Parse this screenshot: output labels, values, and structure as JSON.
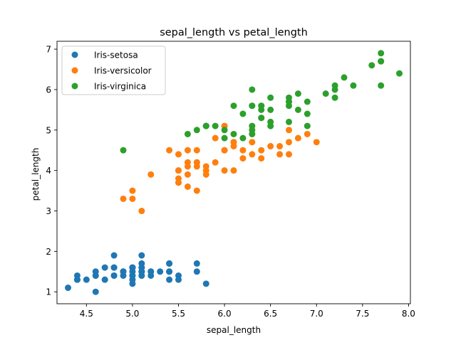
{
  "chart_data": {
    "type": "scatter",
    "title": "sepal_length vs petal_length",
    "xlabel": "sepal_length",
    "ylabel": "petal_length",
    "xlim": [
      4.18,
      8.02
    ],
    "ylim": [
      0.705,
      7.195
    ],
    "xticks": [
      4.5,
      5.0,
      5.5,
      6.0,
      6.5,
      7.0,
      7.5,
      8.0
    ],
    "yticks": [
      1,
      2,
      3,
      4,
      5,
      6,
      7
    ],
    "grid": false,
    "legend_position": "top-left",
    "series": [
      {
        "name": "Iris-setosa",
        "color": "#1f77b4",
        "points": [
          [
            5.1,
            1.4
          ],
          [
            4.9,
            1.4
          ],
          [
            4.7,
            1.3
          ],
          [
            4.6,
            1.5
          ],
          [
            5.0,
            1.4
          ],
          [
            5.4,
            1.7
          ],
          [
            4.6,
            1.4
          ],
          [
            5.0,
            1.5
          ],
          [
            4.4,
            1.4
          ],
          [
            4.9,
            1.5
          ],
          [
            5.4,
            1.5
          ],
          [
            4.8,
            1.6
          ],
          [
            4.8,
            1.4
          ],
          [
            4.3,
            1.1
          ],
          [
            5.8,
            1.2
          ],
          [
            5.7,
            1.5
          ],
          [
            5.4,
            1.3
          ],
          [
            5.1,
            1.4
          ],
          [
            5.7,
            1.7
          ],
          [
            5.1,
            1.5
          ],
          [
            5.4,
            1.7
          ],
          [
            5.1,
            1.5
          ],
          [
            4.6,
            1.0
          ],
          [
            5.1,
            1.7
          ],
          [
            4.8,
            1.9
          ],
          [
            5.0,
            1.6
          ],
          [
            5.0,
            1.6
          ],
          [
            5.2,
            1.5
          ],
          [
            5.2,
            1.4
          ],
          [
            4.7,
            1.6
          ],
          [
            4.8,
            1.6
          ],
          [
            5.4,
            1.5
          ],
          [
            5.2,
            1.5
          ],
          [
            5.5,
            1.4
          ],
          [
            4.9,
            1.5
          ],
          [
            5.0,
            1.2
          ],
          [
            5.5,
            1.3
          ],
          [
            4.9,
            1.5
          ],
          [
            4.4,
            1.3
          ],
          [
            5.1,
            1.5
          ],
          [
            5.0,
            1.3
          ],
          [
            4.5,
            1.3
          ],
          [
            4.4,
            1.3
          ],
          [
            5.0,
            1.6
          ],
          [
            5.1,
            1.9
          ],
          [
            4.8,
            1.4
          ],
          [
            5.1,
            1.6
          ],
          [
            4.6,
            1.4
          ],
          [
            5.3,
            1.5
          ],
          [
            5.0,
            1.4
          ]
        ]
      },
      {
        "name": "Iris-versicolor",
        "color": "#ff7f0e",
        "points": [
          [
            7.0,
            4.7
          ],
          [
            6.4,
            4.5
          ],
          [
            6.9,
            4.9
          ],
          [
            5.5,
            4.0
          ],
          [
            6.5,
            4.6
          ],
          [
            5.7,
            4.5
          ],
          [
            6.3,
            4.7
          ],
          [
            4.9,
            3.3
          ],
          [
            6.6,
            4.6
          ],
          [
            5.2,
            3.9
          ],
          [
            5.0,
            3.5
          ],
          [
            5.9,
            4.2
          ],
          [
            6.0,
            4.0
          ],
          [
            6.1,
            4.7
          ],
          [
            5.6,
            3.6
          ],
          [
            6.7,
            4.4
          ],
          [
            5.6,
            4.5
          ],
          [
            5.8,
            4.1
          ],
          [
            6.2,
            4.5
          ],
          [
            5.6,
            3.9
          ],
          [
            5.9,
            4.8
          ],
          [
            6.1,
            4.0
          ],
          [
            6.3,
            4.9
          ],
          [
            6.1,
            4.7
          ],
          [
            6.4,
            4.3
          ],
          [
            6.6,
            4.4
          ],
          [
            6.8,
            4.8
          ],
          [
            6.7,
            5.0
          ],
          [
            6.0,
            4.5
          ],
          [
            5.7,
            3.5
          ],
          [
            5.5,
            3.8
          ],
          [
            5.5,
            3.7
          ],
          [
            5.8,
            3.9
          ],
          [
            6.0,
            5.1
          ],
          [
            5.4,
            4.5
          ],
          [
            6.0,
            4.5
          ],
          [
            6.7,
            4.7
          ],
          [
            6.3,
            4.4
          ],
          [
            5.6,
            4.1
          ],
          [
            5.5,
            4.0
          ],
          [
            5.5,
            4.4
          ],
          [
            6.1,
            4.6
          ],
          [
            5.8,
            4.0
          ],
          [
            5.0,
            3.3
          ],
          [
            5.6,
            4.2
          ],
          [
            5.7,
            4.2
          ],
          [
            5.7,
            4.2
          ],
          [
            6.2,
            4.3
          ],
          [
            5.1,
            3.0
          ],
          [
            5.7,
            4.1
          ]
        ]
      },
      {
        "name": "Iris-virginica",
        "color": "#2ca02c",
        "points": [
          [
            6.3,
            6.0
          ],
          [
            5.8,
            5.1
          ],
          [
            7.1,
            5.9
          ],
          [
            6.3,
            5.6
          ],
          [
            6.5,
            5.8
          ],
          [
            7.6,
            6.6
          ],
          [
            4.9,
            4.5
          ],
          [
            7.3,
            6.3
          ],
          [
            6.7,
            5.8
          ],
          [
            7.2,
            6.1
          ],
          [
            6.5,
            5.1
          ],
          [
            6.4,
            5.3
          ],
          [
            6.8,
            5.5
          ],
          [
            5.7,
            5.0
          ],
          [
            5.8,
            5.1
          ],
          [
            6.4,
            5.3
          ],
          [
            6.5,
            5.5
          ],
          [
            7.7,
            6.7
          ],
          [
            7.7,
            6.9
          ],
          [
            6.0,
            5.0
          ],
          [
            6.9,
            5.7
          ],
          [
            5.6,
            4.9
          ],
          [
            7.7,
            6.7
          ],
          [
            6.3,
            4.9
          ],
          [
            6.7,
            5.7
          ],
          [
            7.2,
            6.0
          ],
          [
            6.2,
            4.8
          ],
          [
            6.1,
            4.9
          ],
          [
            6.4,
            5.6
          ],
          [
            7.2,
            5.8
          ],
          [
            7.4,
            6.1
          ],
          [
            7.9,
            6.4
          ],
          [
            6.4,
            5.6
          ],
          [
            6.3,
            5.1
          ],
          [
            6.1,
            5.6
          ],
          [
            7.7,
            6.1
          ],
          [
            6.3,
            5.6
          ],
          [
            6.4,
            5.5
          ],
          [
            6.0,
            4.8
          ],
          [
            6.9,
            5.4
          ],
          [
            6.7,
            5.6
          ],
          [
            6.9,
            5.1
          ],
          [
            5.8,
            5.1
          ],
          [
            6.8,
            5.9
          ],
          [
            6.7,
            5.7
          ],
          [
            6.7,
            5.2
          ],
          [
            6.3,
            5.0
          ],
          [
            6.5,
            5.2
          ],
          [
            6.2,
            5.4
          ],
          [
            5.9,
            5.1
          ]
        ]
      }
    ]
  }
}
